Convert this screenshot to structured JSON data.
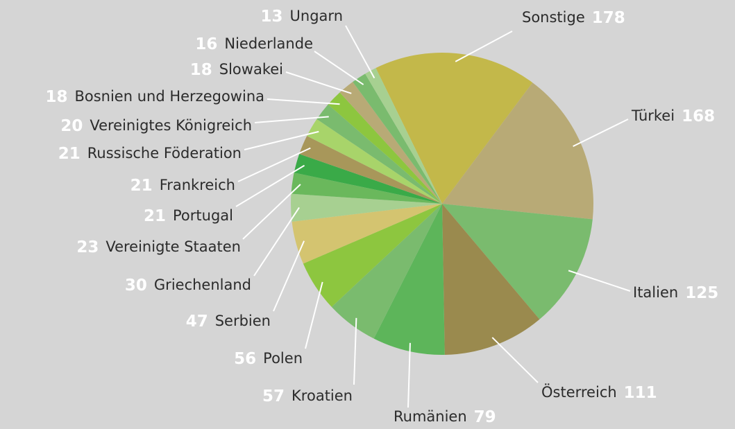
{
  "chart_data": {
    "type": "pie",
    "categories": [
      "Sonstige",
      "Türkei",
      "Italien",
      "Österreich",
      "Rumänien",
      "Kroatien",
      "Polen",
      "Serbien",
      "Griechenland",
      "Vereinigte Staaten",
      "Portugal",
      "Frankreich",
      "Russische Föderation",
      "Vereinigtes Königreich",
      "Bosnien und Herzegowina",
      "Slowakei",
      "Niederlande",
      "Ungarn"
    ],
    "values": [
      178,
      168,
      125,
      111,
      79,
      57,
      56,
      47,
      30,
      23,
      21,
      21,
      21,
      20,
      18,
      18,
      16,
      13
    ],
    "colors": [
      "#c3b84a",
      "#b8aa76",
      "#7abb6e",
      "#9a8a4e",
      "#5db55a",
      "#7abb6e",
      "#8dc63f",
      "#d4c470",
      "#a7d091",
      "#6ab85c",
      "#3aaa48",
      "#a8975a",
      "#a8d46a",
      "#7abb6e",
      "#8dc63f",
      "#b8aa76",
      "#7abb6e",
      "#a7d091"
    ]
  }
}
